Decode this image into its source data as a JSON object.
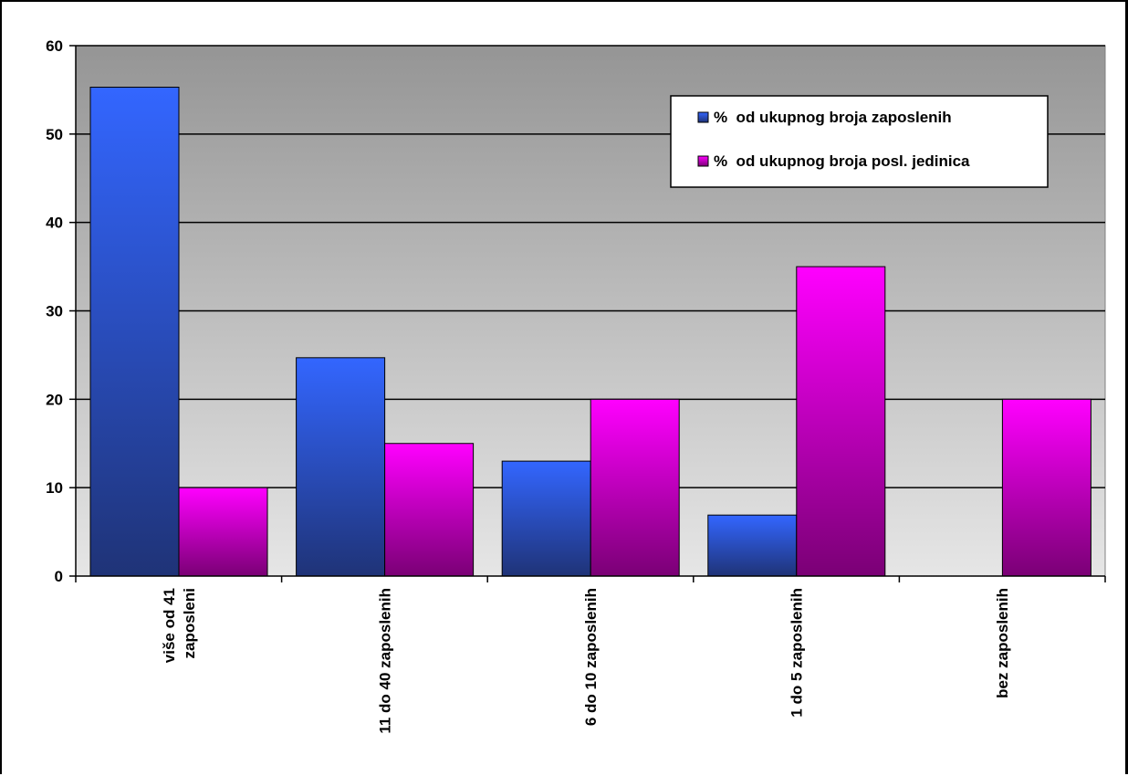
{
  "chart_data": {
    "type": "bar",
    "categories": [
      [
        "više od 41",
        "zaposleni"
      ],
      [
        "11 do 40 zaposlenih"
      ],
      [
        "6 do 10 zaposlenih"
      ],
      [
        "1 do 5 zaposlenih"
      ],
      [
        "bez zaposlenih"
      ]
    ],
    "series": [
      {
        "name": "%  od ukupnog broja zaposlenih",
        "values": [
          55.3,
          24.7,
          13.0,
          6.9,
          0
        ],
        "color": "#3366ff"
      },
      {
        "name": "%  od ukupnog broja posl. jedinica",
        "values": [
          10,
          15,
          20,
          35,
          20
        ],
        "color": "#ff00ff"
      }
    ],
    "yticks": [
      0,
      10,
      20,
      30,
      40,
      50,
      60
    ],
    "ylim": [
      0,
      60
    ],
    "grid": true,
    "legend_position": "top-right",
    "background": "gray-gradient"
  }
}
